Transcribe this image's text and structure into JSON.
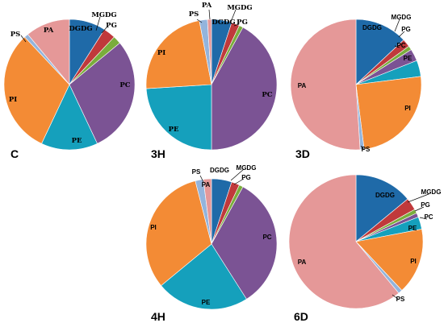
{
  "colors": {
    "DGDG": "#1f6aa8",
    "MGDG": "#c0393b",
    "PG": "#7aad3c",
    "PC": "#7b5394",
    "PE": "#15a0bc",
    "PI": "#f38b35",
    "PS": "#93b4dc",
    "PA": "#e59898"
  },
  "chart_data": [
    {
      "type": "pie",
      "title": "C",
      "categories": [
        "DGDG",
        "MGDG",
        "PG",
        "PC",
        "PE",
        "PI",
        "PS",
        "PA"
      ],
      "values": [
        9,
        3,
        2,
        29,
        14,
        31,
        1,
        11
      ]
    },
    {
      "type": "pie",
      "title": "3H",
      "categories": [
        "DGDG",
        "MGDG",
        "PG",
        "PC",
        "PE",
        "PI",
        "PS",
        "PA"
      ],
      "values": [
        5,
        2,
        1,
        42,
        24,
        23,
        2,
        1
      ]
    },
    {
      "type": "pie",
      "title": "3D",
      "categories": [
        "DGDG",
        "MGDG",
        "PG",
        "PC",
        "PE",
        "PI",
        "PS",
        "PA"
      ],
      "values": [
        13,
        2,
        1,
        3,
        4,
        25,
        1,
        51
      ]
    },
    {
      "type": "pie",
      "title": "4H",
      "categories": [
        "DGDG",
        "MGDG",
        "PG",
        "PC",
        "PE",
        "PI",
        "PS",
        "PA"
      ],
      "values": [
        5,
        2,
        1,
        33,
        23,
        32,
        2,
        2
      ]
    },
    {
      "type": "pie",
      "title": "6D",
      "categories": [
        "DGDG",
        "MGDG",
        "PG",
        "PC",
        "PE",
        "PI",
        "PS",
        "PA"
      ],
      "values": [
        14,
        3,
        1,
        1,
        3,
        16,
        1,
        61
      ]
    }
  ]
}
